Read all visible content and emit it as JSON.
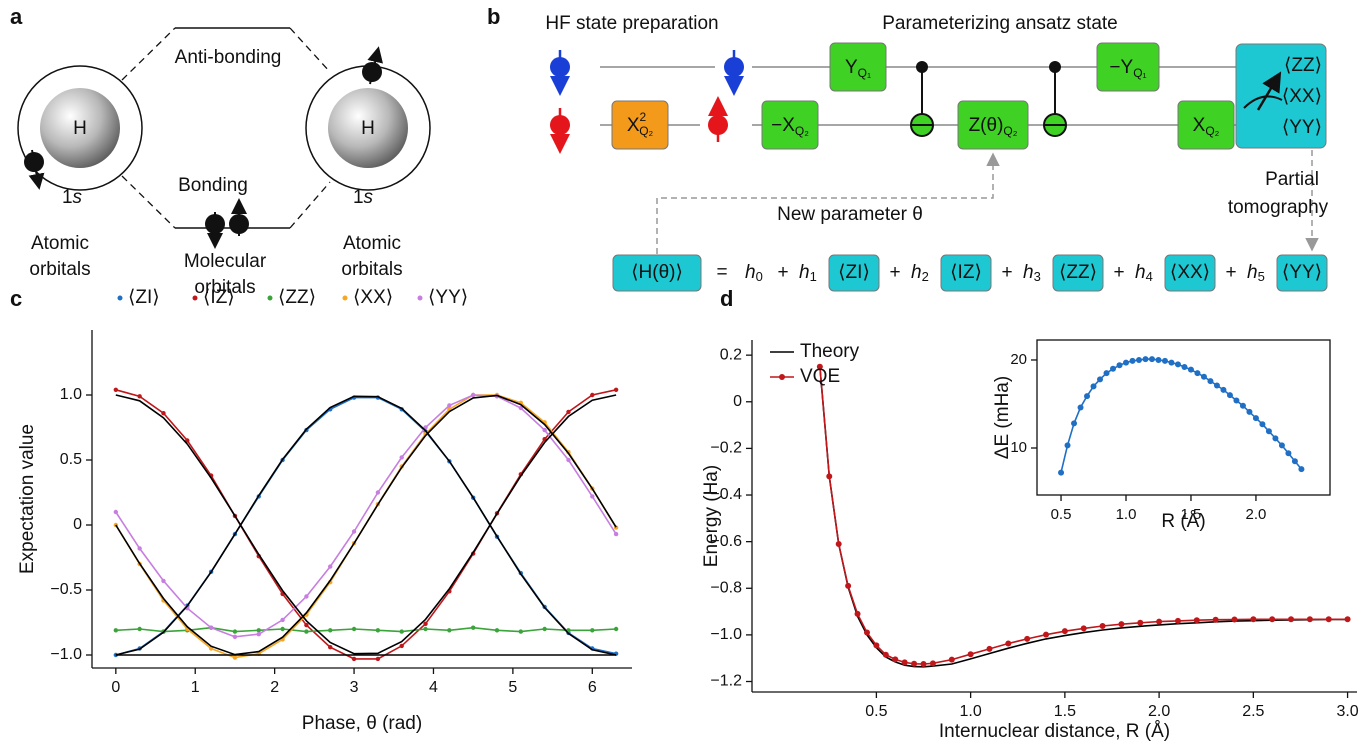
{
  "panel_labels": {
    "a": "a",
    "b": "b",
    "c": "c",
    "d": "d"
  },
  "diagram_a": {
    "atom_left": "H",
    "atom_right": "H",
    "orbital_left": {
      "n": "1",
      "l": "s"
    },
    "orbital_right": {
      "n": "1",
      "l": "s"
    },
    "anti_bonding": "Anti-bonding",
    "bonding": "Bonding",
    "atomic_left": [
      "Atomic",
      "orbitals"
    ],
    "molecular": [
      "Molecular",
      "orbitals"
    ],
    "atomic_right": [
      "Atomic",
      "orbitals"
    ]
  },
  "diagram_b": {
    "hf_title": "HF state preparation",
    "ansatz_title": "Parameterizing ansatz state",
    "gates": [
      {
        "label": "X",
        "sup": "2",
        "sub": "Q₂"
      },
      {
        "label": "−X",
        "sub": "Q₂"
      },
      {
        "label": "Y",
        "sub": "Q₁"
      },
      {
        "label": "Z(θ)",
        "sub": "Q₂"
      },
      {
        "label": "−Y",
        "sub": "Q₁"
      },
      {
        "label": "X",
        "sub": "Q₂"
      }
    ],
    "tomography_outputs": [
      "⟨ZZ⟩",
      "⟨XX⟩",
      "⟨YY⟩"
    ],
    "new_parameter": "New parameter θ",
    "partial_tomography": [
      "Partial",
      "tomography"
    ],
    "equation": {
      "lhs": "⟨H(θ)⟩",
      "equals": "=",
      "plus": "+",
      "terms": [
        {
          "coef": "h",
          "sub": "0"
        },
        {
          "coef": "h",
          "sub": "1",
          "op": "⟨ZI⟩"
        },
        {
          "coef": "h",
          "sub": "2",
          "op": "⟨IZ⟩"
        },
        {
          "coef": "h",
          "sub": "3",
          "op": "⟨ZZ⟩"
        },
        {
          "coef": "h",
          "sub": "4",
          "op": "⟨XX⟩"
        },
        {
          "coef": "h",
          "sub": "5",
          "op": "⟨YY⟩"
        }
      ]
    }
  },
  "chart_data": [
    {
      "type": "line",
      "xlabel": "Phase, θ (rad)",
      "ylabel": "Expectation value",
      "legend": "top",
      "frame": "axes",
      "xlim": [
        -0.3,
        6.5
      ],
      "ylim": [
        -1.1,
        1.5
      ],
      "xticks": [
        0,
        1,
        2,
        3,
        4,
        5,
        6
      ],
      "yticks": [
        {
          "value": -1,
          "label": "−1.0"
        },
        {
          "value": -0.5,
          "label": "−0.5"
        },
        0,
        0.5,
        {
          "value": 1,
          "label": "1.0"
        }
      ],
      "x": [
        0,
        0.3,
        0.6,
        0.9,
        1.2,
        1.5,
        1.8,
        2.1,
        2.4,
        2.7,
        3.0,
        3.3,
        3.6,
        3.9,
        4.2,
        4.5,
        4.8,
        5.1,
        5.4,
        5.7,
        6.0,
        6.3
      ],
      "series": [
        {
          "name": "⟨ZI⟩",
          "color": "#1f6fc5",
          "markers": true,
          "values": [
            -1.0,
            -0.95,
            -0.82,
            -0.62,
            -0.36,
            -0.07,
            0.22,
            0.5,
            0.73,
            0.89,
            0.98,
            0.98,
            0.89,
            0.72,
            0.49,
            0.21,
            -0.09,
            -0.37,
            -0.63,
            -0.83,
            -0.95,
            -0.99
          ]
        },
        {
          "name": "⟨IZ⟩",
          "color": "#c0171b",
          "markers": true,
          "values": [
            1.04,
            0.99,
            0.86,
            0.65,
            0.38,
            0.07,
            -0.24,
            -0.53,
            -0.77,
            -0.94,
            -1.03,
            -1.03,
            -0.93,
            -0.76,
            -0.51,
            -0.22,
            0.09,
            0.39,
            0.66,
            0.87,
            1.0,
            1.04
          ]
        },
        {
          "name": "⟨ZZ⟩",
          "color": "#3aa43a",
          "markers": true,
          "values": [
            -0.81,
            -0.8,
            -0.82,
            -0.81,
            -0.79,
            -0.82,
            -0.81,
            -0.8,
            -0.82,
            -0.81,
            -0.8,
            -0.81,
            -0.82,
            -0.8,
            -0.81,
            -0.79,
            -0.81,
            -0.82,
            -0.8,
            -0.81,
            -0.81,
            -0.8
          ]
        },
        {
          "name": "⟨XX⟩",
          "color": "#f5a623",
          "markers": true,
          "values": [
            0,
            -0.3,
            -0.58,
            -0.8,
            -0.95,
            -1.02,
            -0.99,
            -0.88,
            -0.69,
            -0.44,
            -0.14,
            0.16,
            0.45,
            0.7,
            0.89,
            1.0,
            1.0,
            0.94,
            0.79,
            0.56,
            0.28,
            -0.02
          ]
        },
        {
          "name": "⟨YY⟩",
          "color": "#c77ee0",
          "markers": true,
          "values": [
            0.1,
            -0.18,
            -0.43,
            -0.64,
            -0.79,
            -0.86,
            -0.84,
            -0.73,
            -0.55,
            -0.32,
            -0.05,
            0.25,
            0.52,
            0.75,
            0.92,
            1.0,
            0.99,
            0.9,
            0.73,
            0.5,
            0.22,
            -0.07
          ]
        }
      ],
      "theory_lines": [
        {
          "color": "#000000",
          "values": [
            1,
            0.955,
            0.825,
            0.622,
            0.362,
            0.071,
            -0.227,
            -0.505,
            -0.737,
            -0.904,
            -0.99,
            -0.987,
            -0.897,
            -0.726,
            -0.49,
            -0.211,
            0.087,
            0.378,
            0.635,
            0.835,
            0.96,
            1.0
          ]
        },
        {
          "color": "#000000",
          "values": [
            -1,
            -0.955,
            -0.825,
            -0.622,
            -0.362,
            -0.071,
            0.227,
            0.505,
            0.737,
            0.904,
            0.99,
            0.987,
            0.897,
            0.726,
            0.49,
            0.211,
            -0.087,
            -0.378,
            -0.635,
            -0.835,
            -0.96,
            -1.0
          ]
        },
        {
          "color": "#000000",
          "values": [
            0,
            -0.296,
            -0.565,
            -0.783,
            -0.932,
            -0.997,
            -0.974,
            -0.863,
            -0.675,
            -0.427,
            -0.141,
            0.158,
            0.443,
            0.688,
            0.872,
            0.978,
            0.996,
            0.926,
            0.773,
            0.551,
            0.279,
            -0.017
          ]
        },
        {
          "color": "#000000",
          "values": [
            -1,
            -1,
            -1,
            -1,
            -1,
            -1,
            -1,
            -1,
            -1,
            -1,
            -1,
            -1,
            -1,
            -1,
            -1,
            -1,
            -1,
            -1,
            -1,
            -1,
            -1,
            -1
          ]
        }
      ]
    },
    {
      "type": "line",
      "xlabel": "Internuclear distance, R (Å)",
      "ylabel": "Energy (Ha)",
      "legend": "upper left",
      "frame": "axes",
      "xlim": [
        -0.16,
        3.05
      ],
      "ylim": [
        -1.245,
        0.265
      ],
      "xticks": [
        0.5,
        {
          "value": 1,
          "label": "1.0"
        },
        1.5,
        {
          "value": 2,
          "label": "2.0"
        },
        2.5,
        {
          "value": 3,
          "label": "3.0"
        }
      ],
      "yticks": [
        0.2,
        0,
        {
          "value": -0.2,
          "label": "−0.2"
        },
        {
          "value": -0.4,
          "label": "−0.4"
        },
        {
          "value": -0.6,
          "label": "−0.6"
        },
        {
          "value": -0.8,
          "label": "−0.8"
        },
        {
          "value": -1,
          "label": "−1.0"
        },
        {
          "value": -1.2,
          "label": "−1.2"
        }
      ],
      "x": [
        0.2,
        0.25,
        0.3,
        0.35,
        0.4,
        0.45,
        0.5,
        0.55,
        0.6,
        0.65,
        0.7,
        0.75,
        0.8,
        0.9,
        1.0,
        1.1,
        1.2,
        1.3,
        1.4,
        1.5,
        1.6,
        1.7,
        1.8,
        1.9,
        2.0,
        2.1,
        2.2,
        2.3,
        2.4,
        2.5,
        2.6,
        2.7,
        2.8,
        2.9,
        3.0
      ],
      "series": [
        {
          "name": "Theory",
          "color": "#000000",
          "markers": false,
          "values": [
            0.15,
            -0.32,
            -0.61,
            -0.795,
            -0.92,
            -1.0,
            -1.055,
            -1.095,
            -1.116,
            -1.13,
            -1.136,
            -1.137,
            -1.134,
            -1.125,
            -1.103,
            -1.08,
            -1.057,
            -1.036,
            -1.017,
            -1.003,
            -0.99,
            -0.979,
            -0.97,
            -0.963,
            -0.957,
            -0.952,
            -0.948,
            -0.944,
            -0.941,
            -0.939,
            -0.937,
            -0.936,
            -0.935,
            -0.934,
            -0.934
          ]
        },
        {
          "name": "VQE",
          "color": "#c0171b",
          "markers": true,
          "values": [
            0.15,
            -0.32,
            -0.61,
            -0.79,
            -0.91,
            -0.99,
            -1.045,
            -1.085,
            -1.105,
            -1.118,
            -1.124,
            -1.125,
            -1.122,
            -1.106,
            -1.083,
            -1.06,
            -1.037,
            -1.017,
            -0.999,
            -0.984,
            -0.972,
            -0.962,
            -0.954,
            -0.948,
            -0.943,
            -0.94,
            -0.937,
            -0.935,
            -0.934,
            -0.933,
            -0.933,
            -0.933,
            -0.933,
            -0.933,
            -0.933
          ]
        }
      ]
    },
    {
      "type": "line",
      "xlabel": "R (Å)",
      "ylabel": "ΔE (mHa)",
      "frame": "box",
      "xlim": [
        0.315,
        2.57
      ],
      "ylim": [
        4.66,
        22.27
      ],
      "xticks": [
        0.5,
        {
          "value": 1,
          "label": "1.0"
        },
        1.5,
        {
          "value": 2,
          "label": "2.0"
        }
      ],
      "yticks": [
        10,
        20
      ],
      "x": [
        0.5,
        0.55,
        0.6,
        0.65,
        0.7,
        0.75,
        0.8,
        0.85,
        0.9,
        0.95,
        1.0,
        1.05,
        1.1,
        1.15,
        1.2,
        1.25,
        1.3,
        1.35,
        1.4,
        1.45,
        1.5,
        1.55,
        1.6,
        1.65,
        1.7,
        1.75,
        1.8,
        1.85,
        1.9,
        1.95,
        2.0,
        2.05,
        2.1,
        2.15,
        2.2,
        2.25,
        2.3,
        2.35
      ],
      "series": [
        {
          "color": "#1f6fc5",
          "markers": true,
          "values": [
            7.2,
            10.3,
            12.8,
            14.6,
            15.9,
            17.0,
            17.8,
            18.5,
            19.0,
            19.4,
            19.7,
            19.9,
            20.0,
            20.1,
            20.1,
            20.0,
            19.9,
            19.7,
            19.5,
            19.2,
            18.9,
            18.5,
            18.1,
            17.6,
            17.1,
            16.6,
            16.0,
            15.4,
            14.8,
            14.1,
            13.4,
            12.7,
            11.9,
            11.1,
            10.3,
            9.4,
            8.5,
            7.6
          ]
        }
      ]
    }
  ]
}
